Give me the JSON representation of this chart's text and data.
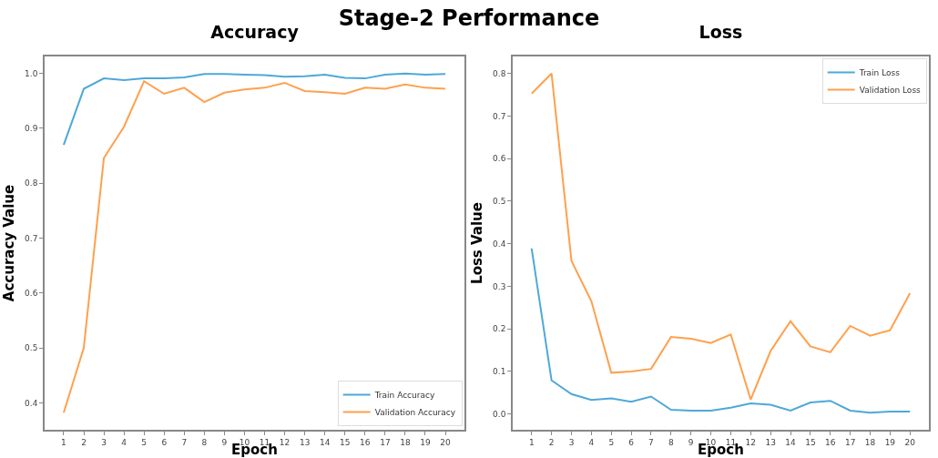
{
  "chart_data": [
    {
      "type": "line",
      "title": "Accuracy",
      "xlabel": "Epoch",
      "ylabel": "Accuracy Value",
      "annotations": [
        "Stage-2 Performance"
      ],
      "x": [
        1,
        2,
        3,
        4,
        5,
        6,
        7,
        8,
        9,
        10,
        11,
        12,
        13,
        14,
        15,
        16,
        17,
        18,
        19,
        20
      ],
      "series": [
        {
          "name": "Train Accuracy",
          "color": "#4fa8d8",
          "values": [
            0.87,
            0.972,
            0.991,
            0.988,
            0.991,
            0.991,
            0.993,
            0.999,
            0.999,
            0.998,
            0.997,
            0.994,
            0.995,
            0.998,
            0.992,
            0.991,
            0.998,
            1.0,
            0.998,
            0.999
          ]
        },
        {
          "name": "Validation Accuracy",
          "color": "#ffa04d",
          "values": [
            0.382,
            0.5,
            0.846,
            0.903,
            0.986,
            0.963,
            0.974,
            0.948,
            0.965,
            0.971,
            0.974,
            0.983,
            0.968,
            0.966,
            0.963,
            0.974,
            0.972,
            0.98,
            0.974,
            0.972
          ]
        }
      ],
      "xlim": [
        0.05,
        20.95
      ],
      "xticks": [
        1,
        2,
        3,
        4,
        5,
        6,
        7,
        8,
        9,
        10,
        11,
        12,
        13,
        14,
        15,
        16,
        17,
        18,
        19,
        20
      ],
      "ylim": [
        0.351,
        1.031
      ],
      "yticks": [
        0.4,
        0.5,
        0.6,
        0.7,
        0.8,
        0.9,
        {
          "value": 1.0,
          "label": "1.0"
        }
      ],
      "grid": false,
      "legend": "bottom right",
      "marker": "none",
      "line_style": "solid"
    },
    {
      "type": "line",
      "title": "Loss",
      "xlabel": "Epoch",
      "ylabel": "Loss Value",
      "x": [
        1,
        2,
        3,
        4,
        5,
        6,
        7,
        8,
        9,
        10,
        11,
        12,
        13,
        14,
        15,
        16,
        17,
        18,
        19,
        20
      ],
      "series": [
        {
          "name": "Train Loss",
          "color": "#4fa8d8",
          "values": [
            0.389,
            0.079,
            0.047,
            0.033,
            0.037,
            0.029,
            0.041,
            0.01,
            0.008,
            0.008,
            0.015,
            0.025,
            0.022,
            0.008,
            0.027,
            0.031,
            0.008,
            0.003,
            0.006,
            0.006
          ]
        },
        {
          "name": "Validation Loss",
          "color": "#ffa04d",
          "values": [
            0.753,
            0.8,
            0.36,
            0.265,
            0.097,
            0.1,
            0.106,
            0.181,
            0.177,
            0.167,
            0.187,
            0.034,
            0.148,
            0.218,
            0.159,
            0.145,
            0.207,
            0.184,
            0.197,
            0.284
          ]
        }
      ],
      "xlim": [
        0.05,
        20.95
      ],
      "xticks": [
        1,
        2,
        3,
        4,
        5,
        6,
        7,
        8,
        9,
        10,
        11,
        12,
        13,
        14,
        15,
        16,
        17,
        18,
        19,
        20
      ],
      "ylim": [
        -0.037,
        0.84
      ],
      "yticks": [
        {
          "value": 0,
          "label": "0.0"
        },
        0.1,
        0.2,
        0.3,
        0.4,
        0.5,
        0.6,
        0.7,
        0.8
      ],
      "grid": false,
      "legend": "top right",
      "marker": "none",
      "line_style": "solid"
    }
  ]
}
